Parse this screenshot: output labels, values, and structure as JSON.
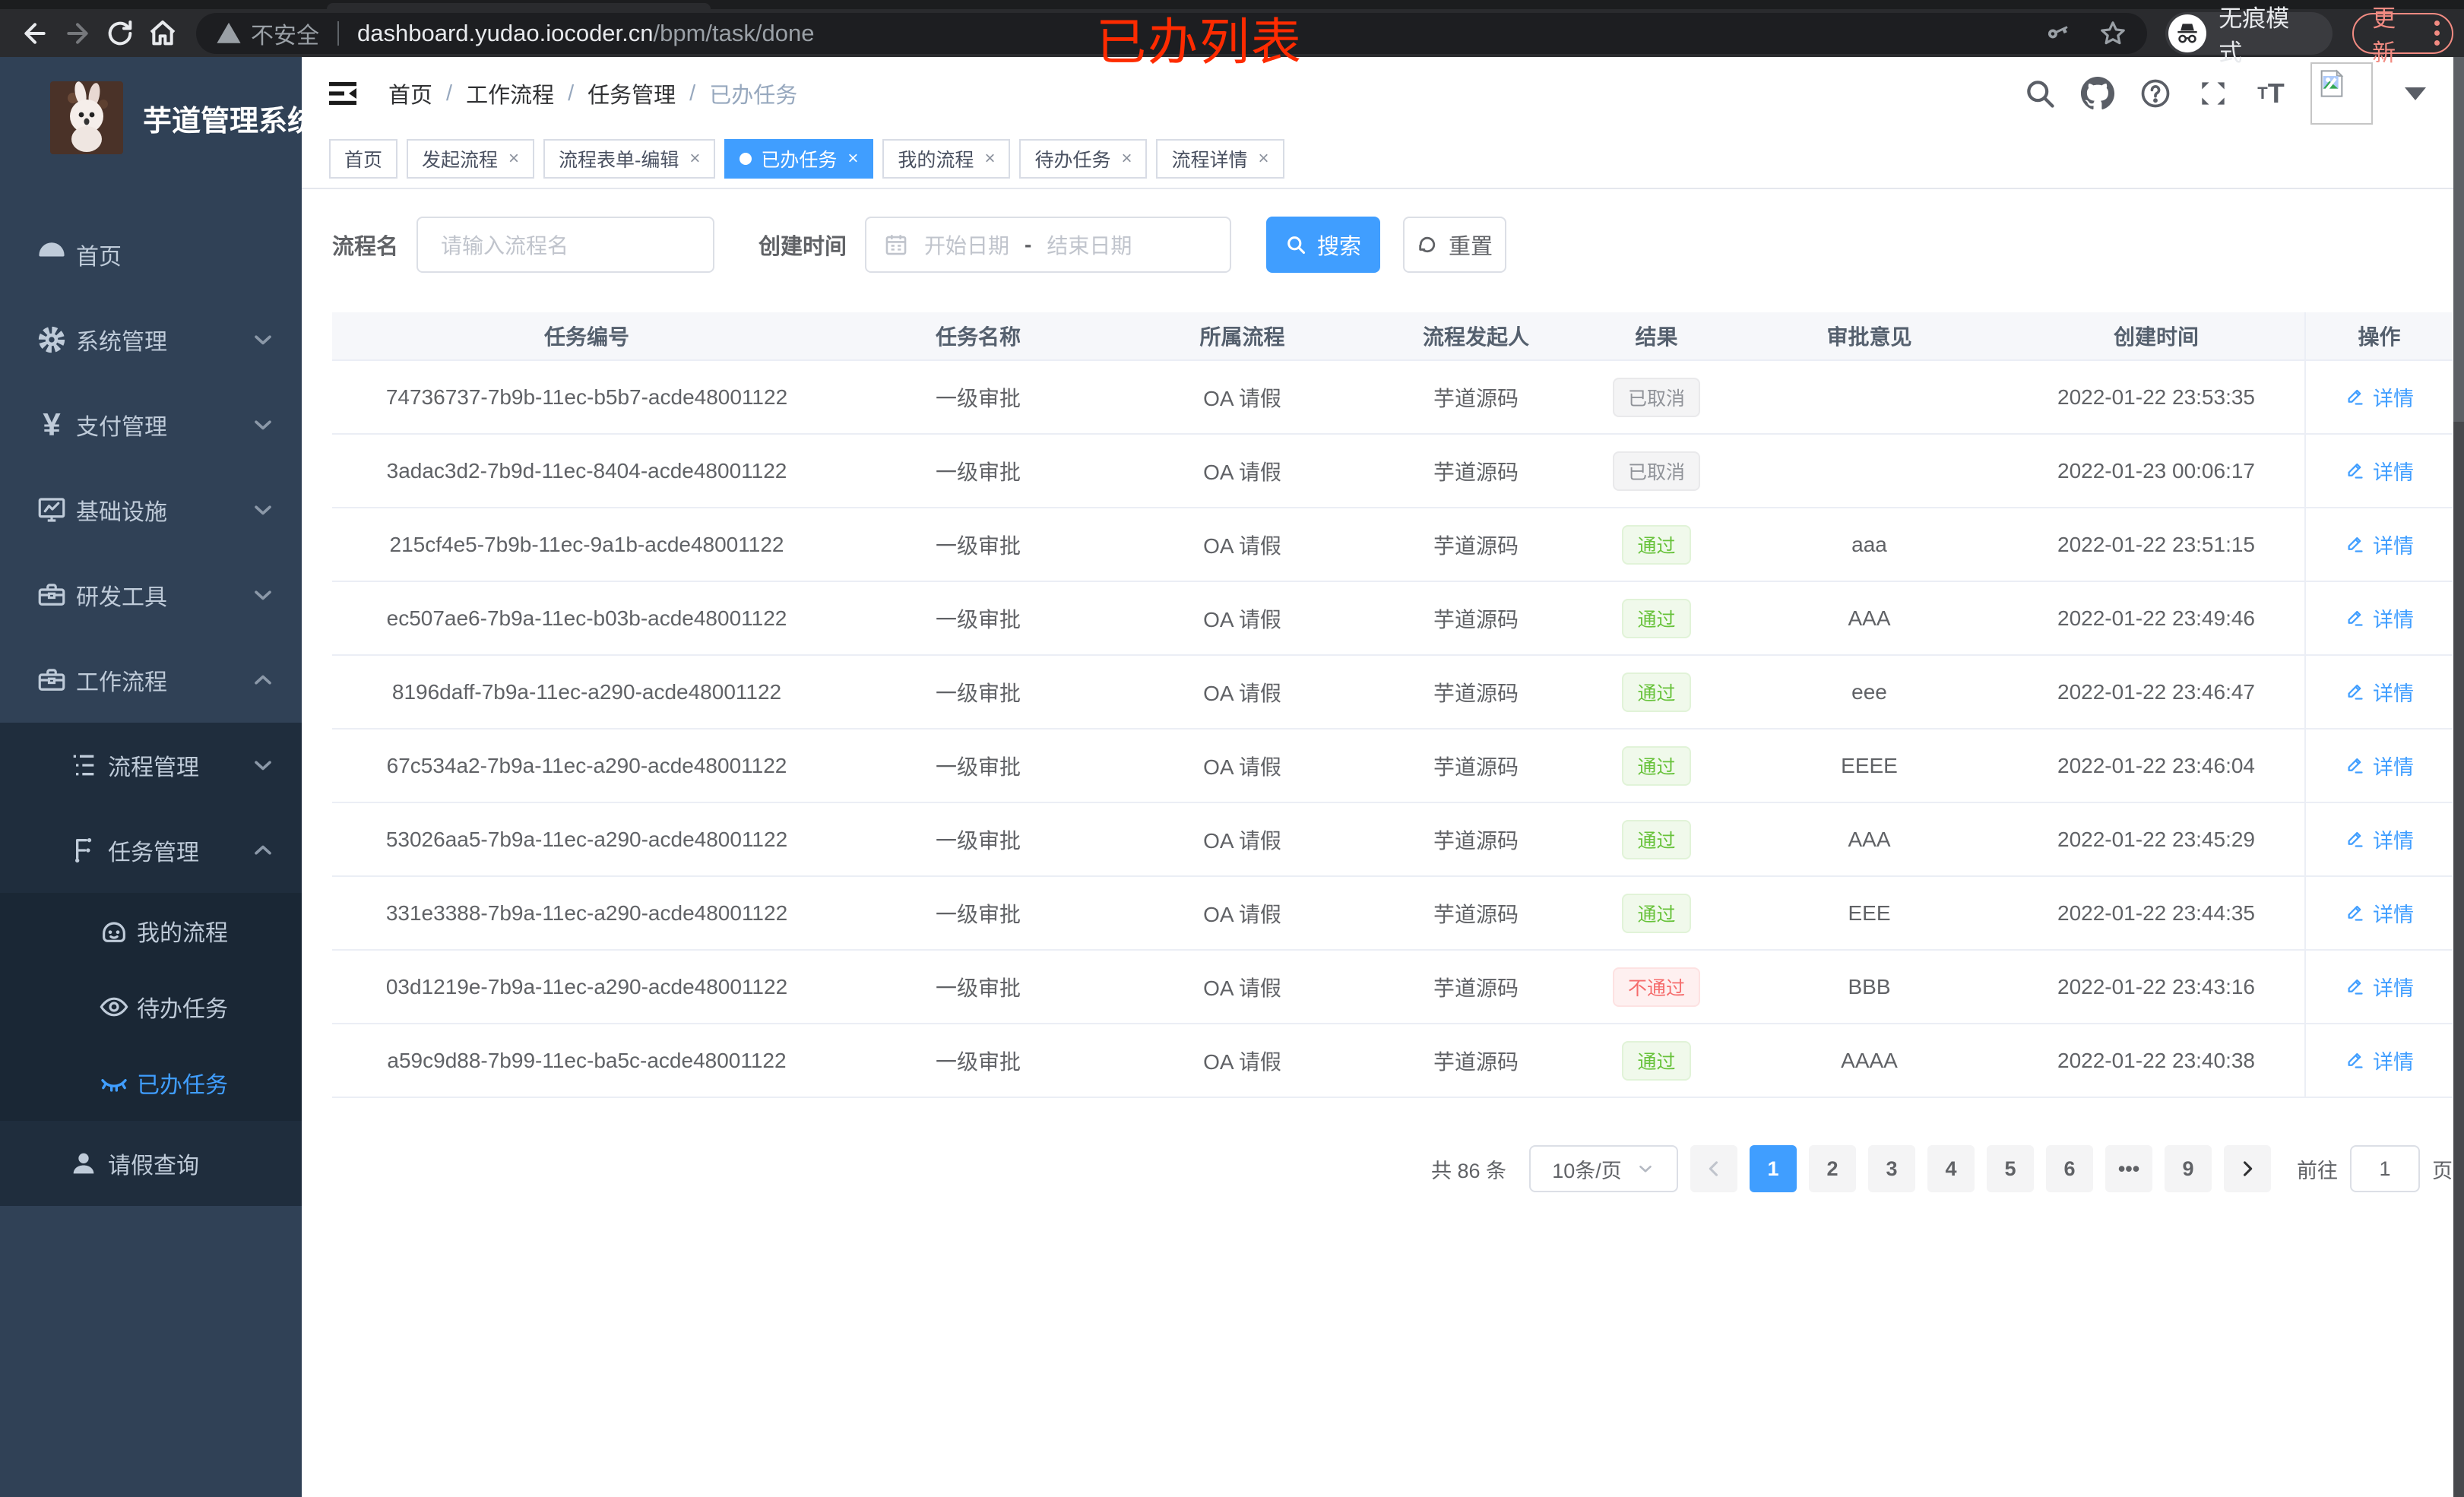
{
  "annotation": "已办列表",
  "browser": {
    "security_label": "不安全",
    "url_host": "dashboard.yudao.iocoder.cn",
    "url_path": "/bpm/task/done",
    "incognito_label": "无痕模式",
    "update_label": "更新"
  },
  "sidebar": {
    "title": "芋道管理系统",
    "home": "首页",
    "system": "系统管理",
    "payment": "支付管理",
    "infra": "基础设施",
    "devtools": "研发工具",
    "workflow": "工作流程",
    "process_mgmt": "流程管理",
    "task_mgmt": "任务管理",
    "my_process": "我的流程",
    "todo_task": "待办任务",
    "done_task": "已办任务",
    "leave_query": "请假查询"
  },
  "breadcrumb": [
    "首页",
    "工作流程",
    "任务管理",
    "已办任务"
  ],
  "tags": [
    {
      "label": "首页",
      "closable": false,
      "active": false
    },
    {
      "label": "发起流程",
      "closable": true,
      "active": false
    },
    {
      "label": "流程表单-编辑",
      "closable": true,
      "active": false
    },
    {
      "label": "已办任务",
      "closable": true,
      "active": true
    },
    {
      "label": "我的流程",
      "closable": true,
      "active": false
    },
    {
      "label": "待办任务",
      "closable": true,
      "active": false
    },
    {
      "label": "流程详情",
      "closable": true,
      "active": false
    }
  ],
  "filters": {
    "name_label": "流程名",
    "name_placeholder": "请输入流程名",
    "time_label": "创建时间",
    "start_placeholder": "开始日期",
    "range_separator": "-",
    "end_placeholder": "结束日期",
    "search_label": "搜索",
    "reset_label": "重置"
  },
  "table": {
    "columns": [
      "任务编号",
      "任务名称",
      "所属流程",
      "流程发起人",
      "结果",
      "审批意见",
      "创建时间",
      "操作"
    ],
    "detail_label": "详情",
    "rows": [
      {
        "id": "74736737-7b9b-11ec-b5b7-acde48001122",
        "name": "一级审批",
        "process": "OA 请假",
        "starter": "芋道源码",
        "result": "已取消",
        "result_type": "info",
        "opinion": "",
        "time": "2022-01-22 23:53:35"
      },
      {
        "id": "3adac3d2-7b9d-11ec-8404-acde48001122",
        "name": "一级审批",
        "process": "OA 请假",
        "starter": "芋道源码",
        "result": "已取消",
        "result_type": "info",
        "opinion": "",
        "time": "2022-01-23 00:06:17"
      },
      {
        "id": "215cf4e5-7b9b-11ec-9a1b-acde48001122",
        "name": "一级审批",
        "process": "OA 请假",
        "starter": "芋道源码",
        "result": "通过",
        "result_type": "success",
        "opinion": "aaa",
        "time": "2022-01-22 23:51:15"
      },
      {
        "id": "ec507ae6-7b9a-11ec-b03b-acde48001122",
        "name": "一级审批",
        "process": "OA 请假",
        "starter": "芋道源码",
        "result": "通过",
        "result_type": "success",
        "opinion": "AAA",
        "time": "2022-01-22 23:49:46"
      },
      {
        "id": "8196daff-7b9a-11ec-a290-acde48001122",
        "name": "一级审批",
        "process": "OA 请假",
        "starter": "芋道源码",
        "result": "通过",
        "result_type": "success",
        "opinion": "eee",
        "time": "2022-01-22 23:46:47"
      },
      {
        "id": "67c534a2-7b9a-11ec-a290-acde48001122",
        "name": "一级审批",
        "process": "OA 请假",
        "starter": "芋道源码",
        "result": "通过",
        "result_type": "success",
        "opinion": "EEEE",
        "time": "2022-01-22 23:46:04"
      },
      {
        "id": "53026aa5-7b9a-11ec-a290-acde48001122",
        "name": "一级审批",
        "process": "OA 请假",
        "starter": "芋道源码",
        "result": "通过",
        "result_type": "success",
        "opinion": "AAA",
        "time": "2022-01-22 23:45:29"
      },
      {
        "id": "331e3388-7b9a-11ec-a290-acde48001122",
        "name": "一级审批",
        "process": "OA 请假",
        "starter": "芋道源码",
        "result": "通过",
        "result_type": "success",
        "opinion": "EEE",
        "time": "2022-01-22 23:44:35"
      },
      {
        "id": "03d1219e-7b9a-11ec-a290-acde48001122",
        "name": "一级审批",
        "process": "OA 请假",
        "starter": "芋道源码",
        "result": "不通过",
        "result_type": "danger",
        "opinion": "BBB",
        "time": "2022-01-22 23:43:16"
      },
      {
        "id": "a59c9d88-7b99-11ec-ba5c-acde48001122",
        "name": "一级审批",
        "process": "OA 请假",
        "starter": "芋道源码",
        "result": "通过",
        "result_type": "success",
        "opinion": "AAAA",
        "time": "2022-01-22 23:40:38"
      }
    ]
  },
  "pagination": {
    "total_label": "共 86 条",
    "page_size_label": "10条/页",
    "pages": [
      "1",
      "2",
      "3",
      "4",
      "5",
      "6",
      "•••",
      "9"
    ],
    "active_page": "1",
    "goto_label": "前往",
    "goto_value": "1",
    "goto_suffix": "页"
  },
  "colors": {
    "accent": "#409eff",
    "success": "#67c23a",
    "danger": "#f56c6c",
    "info": "#909399",
    "sidebar_bg": "#304156",
    "annotation_red": "#fe2b00"
  }
}
